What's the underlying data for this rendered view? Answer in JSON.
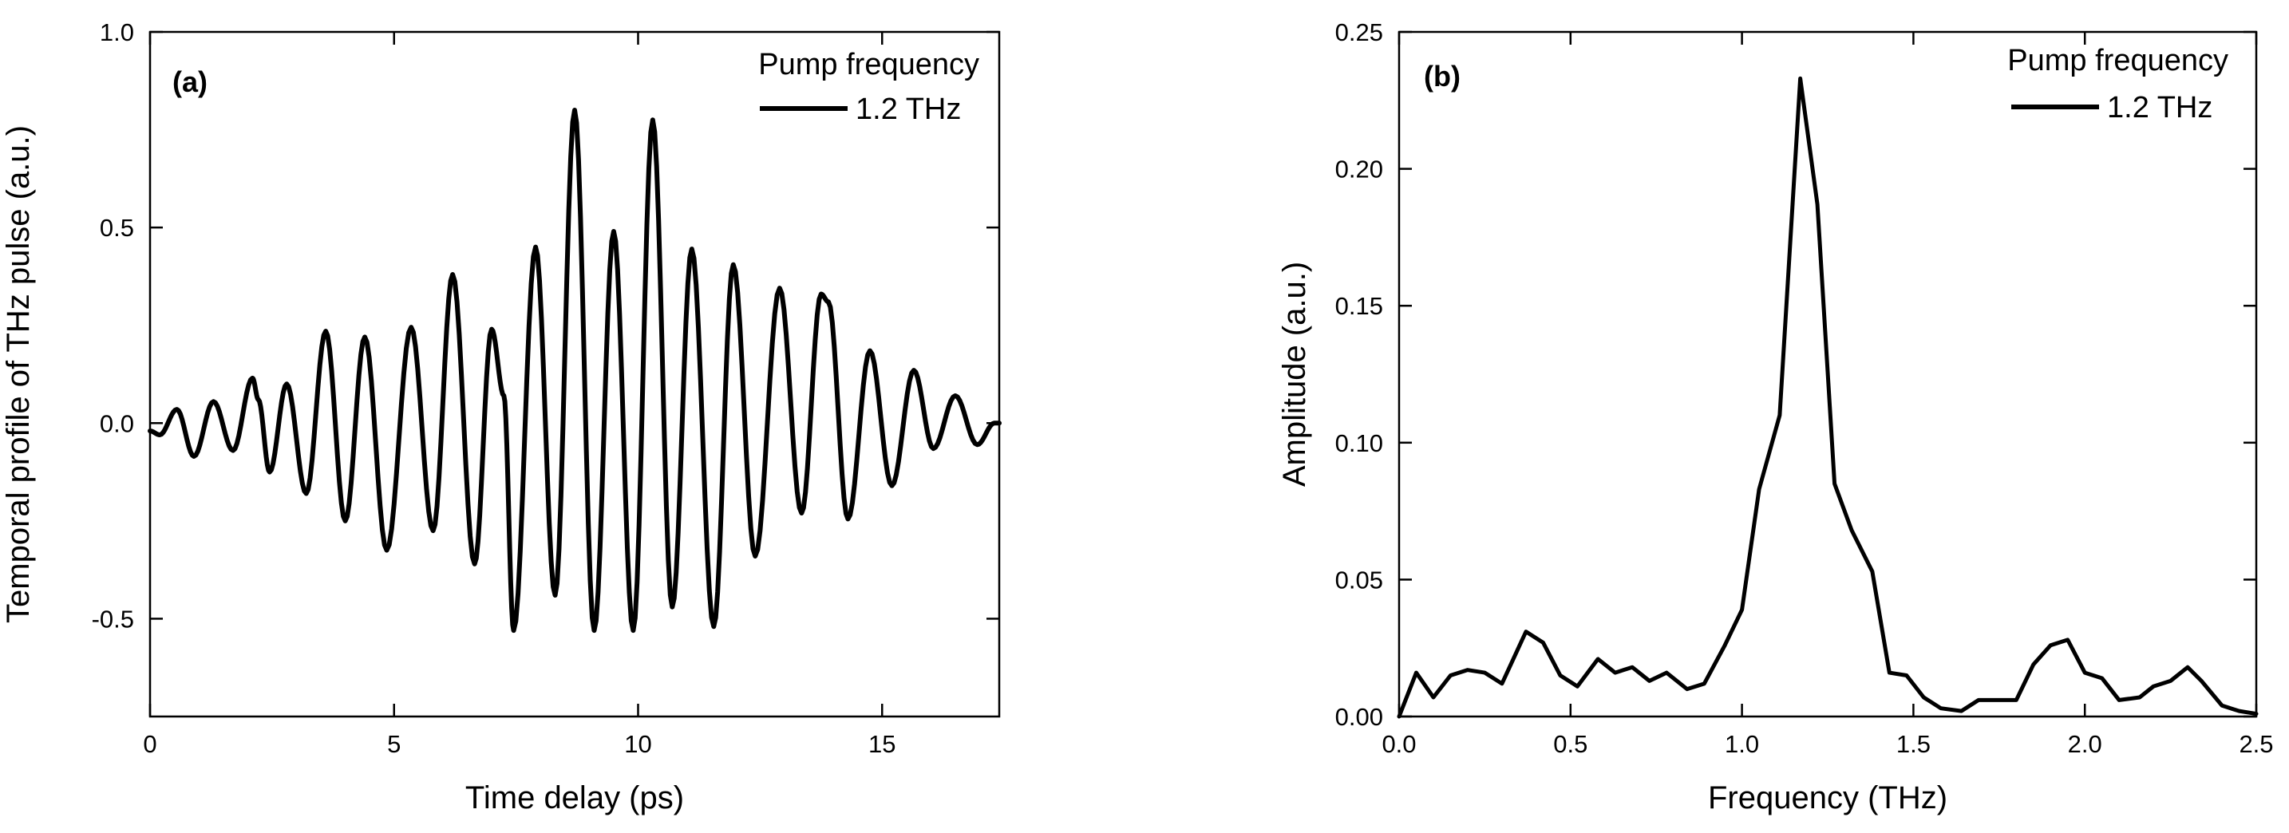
{
  "figure": {
    "background": "#ffffff",
    "line_color": "#000000"
  },
  "chart_data": [
    {
      "type": "line",
      "panel_label": "(a)",
      "title": "",
      "xlabel": "Time delay (ps)",
      "ylabel": "Temporal profile of THz pulse (a.u.)",
      "xlim": [
        0,
        17.4
      ],
      "ylim": [
        -0.75,
        1.0
      ],
      "xticks": [
        0,
        5,
        10,
        15
      ],
      "xtick_labels": [
        "0",
        "5",
        "10",
        "15"
      ],
      "yticks": [
        -0.5,
        0.0,
        0.5,
        1.0
      ],
      "ytick_labels": [
        "-0.5",
        "0.0",
        "0.5",
        "1.0"
      ],
      "legend": {
        "title": "Pump frequency",
        "position": "top-right",
        "entries": [
          "1.2 THz"
        ]
      },
      "series": [
        {
          "name": "1.2 THz",
          "extrema": [
            [
              0.0,
              -0.02
            ],
            [
              0.2,
              -0.03
            ],
            [
              0.55,
              0.035
            ],
            [
              0.9,
              -0.085
            ],
            [
              1.3,
              0.055
            ],
            [
              1.7,
              -0.07
            ],
            [
              2.1,
              0.115
            ],
            [
              2.22,
              0.06
            ],
            [
              2.45,
              -0.125
            ],
            [
              2.8,
              0.1
            ],
            [
              3.2,
              -0.18
            ],
            [
              3.6,
              0.235
            ],
            [
              4.0,
              -0.25
            ],
            [
              4.4,
              0.22
            ],
            [
              4.85,
              -0.325
            ],
            [
              5.35,
              0.245
            ],
            [
              5.8,
              -0.275
            ],
            [
              6.2,
              0.38
            ],
            [
              6.65,
              -0.36
            ],
            [
              7.0,
              0.24
            ],
            [
              7.25,
              0.07
            ],
            [
              7.45,
              -0.53
            ],
            [
              7.9,
              0.45
            ],
            [
              8.3,
              -0.44
            ],
            [
              8.7,
              0.8
            ],
            [
              9.1,
              -0.53
            ],
            [
              9.5,
              0.49
            ],
            [
              9.9,
              -0.53
            ],
            [
              10.3,
              0.775
            ],
            [
              10.7,
              -0.47
            ],
            [
              11.1,
              0.445
            ],
            [
              11.55,
              -0.52
            ],
            [
              11.95,
              0.405
            ],
            [
              12.4,
              -0.34
            ],
            [
              12.9,
              0.345
            ],
            [
              13.35,
              -0.23
            ],
            [
              13.75,
              0.33
            ],
            [
              13.9,
              0.31
            ],
            [
              14.3,
              -0.245
            ],
            [
              14.75,
              0.185
            ],
            [
              15.2,
              -0.16
            ],
            [
              15.65,
              0.135
            ],
            [
              16.05,
              -0.065
            ],
            [
              16.5,
              0.07
            ],
            [
              16.95,
              -0.055
            ],
            [
              17.3,
              0.0
            ],
            [
              17.4,
              0.0
            ]
          ]
        }
      ]
    },
    {
      "type": "line",
      "panel_label": "(b)",
      "title": "",
      "xlabel": "Frequency (THz)",
      "ylabel": "Amplitude (a.u.)",
      "xlim": [
        0.0,
        2.5
      ],
      "ylim": [
        0.0,
        0.25
      ],
      "xticks": [
        0.0,
        0.5,
        1.0,
        1.5,
        2.0,
        2.5
      ],
      "xtick_labels": [
        "0.0",
        "0.5",
        "1.0",
        "1.5",
        "2.0",
        "2.5"
      ],
      "yticks": [
        0.0,
        0.05,
        0.1,
        0.15,
        0.2,
        0.25
      ],
      "ytick_labels": [
        "0.00",
        "0.05",
        "0.10",
        "0.15",
        "0.20",
        "0.25"
      ],
      "legend": {
        "title": "Pump frequency",
        "position": "top-right",
        "entries": [
          "1.2 THz"
        ]
      },
      "series": [
        {
          "name": "1.2 THz",
          "x": [
            0.0,
            0.05,
            0.1,
            0.15,
            0.2,
            0.25,
            0.3,
            0.37,
            0.42,
            0.47,
            0.52,
            0.58,
            0.63,
            0.68,
            0.73,
            0.78,
            0.84,
            0.89,
            0.95,
            1.0,
            1.05,
            1.11,
            1.17,
            1.22,
            1.27,
            1.32,
            1.38,
            1.43,
            1.48,
            1.53,
            1.58,
            1.64,
            1.69,
            1.74,
            1.8,
            1.85,
            1.9,
            1.95,
            2.0,
            2.05,
            2.1,
            2.16,
            2.2,
            2.25,
            2.3,
            2.34,
            2.4,
            2.45,
            2.5
          ],
          "y": [
            0.0,
            0.016,
            0.007,
            0.015,
            0.017,
            0.016,
            0.012,
            0.031,
            0.027,
            0.015,
            0.011,
            0.021,
            0.016,
            0.018,
            0.013,
            0.016,
            0.01,
            0.012,
            0.026,
            0.039,
            0.083,
            0.11,
            0.233,
            0.187,
            0.085,
            0.068,
            0.053,
            0.016,
            0.015,
            0.007,
            0.003,
            0.002,
            0.006,
            0.006,
            0.006,
            0.019,
            0.026,
            0.028,
            0.016,
            0.014,
            0.006,
            0.007,
            0.011,
            0.013,
            0.018,
            0.013,
            0.004,
            0.002,
            0.001
          ]
        }
      ]
    }
  ]
}
